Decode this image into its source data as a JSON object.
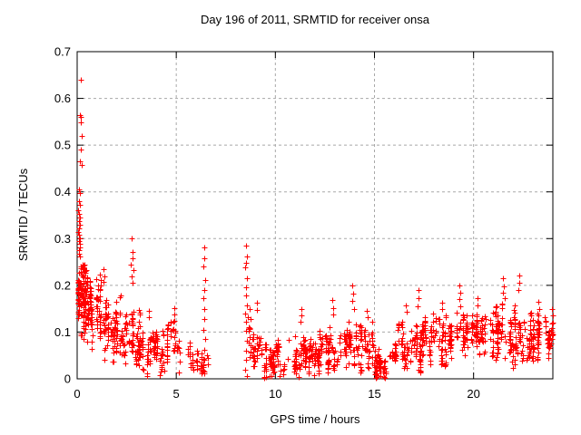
{
  "figure": {
    "title": "Day 196 of 2011, SRMTID for receiver onsa",
    "xlabel": "GPS time / hours",
    "ylabel": "SRMTID / TECUs"
  },
  "chart_data": {
    "type": "scatter",
    "title": "Day 196 of 2011, SRMTID for receiver onsa",
    "xlabel": "GPS time / hours",
    "ylabel": "SRMTID / TECUs",
    "xlim": [
      0,
      24
    ],
    "ylim": [
      0,
      0.7
    ],
    "xticks": {
      "values": [
        0,
        5,
        10,
        15,
        20
      ],
      "labels": [
        "0",
        "5",
        "10",
        "15",
        "20"
      ]
    },
    "yticks": {
      "values": [
        0,
        0.1,
        0.2,
        0.3,
        0.4,
        0.5,
        0.6,
        0.7
      ],
      "labels": [
        "0",
        "0.1",
        "0.2",
        "0.3",
        "0.4",
        "0.5",
        "0.6",
        "0.7"
      ]
    },
    "grid": {
      "style": "dashed",
      "color": "#a8a8a8"
    },
    "marker": {
      "shape": "plus",
      "color": "#ff0000",
      "size": 7
    },
    "border_color": "#000000",
    "background": "#ffffff",
    "legend": "none",
    "notes": "Dense 30s scatter: spike to 0.64 TECU at ~0.2h, decay to ~0.05 by 5h, data gap 6.7-8.4h, spikes to ~0.28 at 6.4h and 8.5h, low band 0-0.1 from 9-16h with dip near 0 at 15-16h, rise to 0.05-0.22 from 16-24h",
    "outlier_points": [
      [
        0.2,
        0.64
      ],
      [
        0.15,
        0.565
      ],
      [
        0.2,
        0.56
      ],
      [
        0.18,
        0.548
      ],
      [
        0.25,
        0.52
      ],
      [
        0.2,
        0.49
      ],
      [
        0.15,
        0.465
      ],
      [
        0.21,
        0.458
      ],
      [
        0.1,
        0.405
      ],
      [
        0.15,
        0.398
      ],
      [
        0.08,
        0.38
      ],
      [
        0.12,
        0.372
      ],
      [
        0.06,
        0.36
      ],
      [
        0.1,
        0.352
      ],
      [
        0.15,
        0.345
      ],
      [
        0.08,
        0.337
      ],
      [
        0.12,
        0.33
      ],
      [
        0.1,
        0.322
      ],
      [
        0.06,
        0.315
      ],
      [
        0.1,
        0.308
      ],
      [
        0.14,
        0.3
      ],
      [
        0.08,
        0.295
      ],
      [
        0.12,
        0.288
      ],
      [
        0.16,
        0.281
      ],
      [
        0.1,
        0.275
      ],
      [
        0.07,
        0.268
      ],
      [
        0.13,
        0.262
      ],
      [
        1.35,
        0.235
      ],
      [
        1.37,
        0.22
      ],
      [
        1.33,
        0.208
      ],
      [
        2.75,
        0.3
      ],
      [
        2.78,
        0.272
      ],
      [
        2.8,
        0.258
      ],
      [
        2.72,
        0.245
      ],
      [
        2.85,
        0.232
      ],
      [
        2.76,
        0.22
      ],
      [
        2.8,
        0.205
      ],
      [
        3.6,
        0.145
      ],
      [
        3.62,
        0.132
      ],
      [
        4.9,
        0.152
      ],
      [
        4.92,
        0.138
      ],
      [
        4.88,
        0.125
      ],
      [
        6.4,
        0.282
      ],
      [
        6.42,
        0.258
      ],
      [
        6.38,
        0.24
      ],
      [
        6.45,
        0.212
      ],
      [
        6.4,
        0.19
      ],
      [
        6.35,
        0.172
      ],
      [
        6.42,
        0.15
      ],
      [
        6.4,
        0.128
      ],
      [
        6.38,
        0.105
      ],
      [
        6.45,
        0.085
      ],
      [
        6.4,
        0.062
      ],
      [
        6.42,
        0.04
      ],
      [
        6.38,
        0.018
      ],
      [
        8.52,
        0.285
      ],
      [
        8.55,
        0.262
      ],
      [
        8.5,
        0.248
      ],
      [
        8.48,
        0.238
      ],
      [
        8.55,
        0.215
      ],
      [
        8.52,
        0.195
      ],
      [
        8.5,
        0.178
      ],
      [
        8.55,
        0.158
      ],
      [
        8.48,
        0.14
      ],
      [
        8.52,
        0.122
      ],
      [
        8.5,
        0.102
      ],
      [
        8.55,
        0.082
      ],
      [
        8.52,
        0.06
      ],
      [
        8.5,
        0.04
      ],
      [
        8.48,
        0.02
      ],
      [
        8.55,
        0.005
      ],
      [
        8.62,
        0.132
      ],
      [
        8.65,
        0.11
      ],
      [
        8.68,
        0.09
      ],
      [
        8.72,
        0.15
      ],
      [
        8.75,
        0.128
      ],
      [
        9.05,
        0.162
      ],
      [
        9.07,
        0.148
      ],
      [
        11.3,
        0.15
      ],
      [
        11.32,
        0.136
      ],
      [
        11.28,
        0.122
      ],
      [
        12.88,
        0.168
      ],
      [
        12.9,
        0.152
      ],
      [
        12.92,
        0.138
      ],
      [
        13.9,
        0.2
      ],
      [
        13.92,
        0.182
      ],
      [
        13.88,
        0.166
      ],
      [
        13.95,
        0.15
      ],
      [
        14.6,
        0.145
      ],
      [
        14.64,
        0.131
      ],
      [
        16.58,
        0.158
      ],
      [
        16.62,
        0.144
      ],
      [
        17.2,
        0.19
      ],
      [
        17.22,
        0.173
      ],
      [
        17.18,
        0.156
      ],
      [
        18.4,
        0.163
      ],
      [
        18.42,
        0.149
      ],
      [
        19.3,
        0.2
      ],
      [
        19.32,
        0.185
      ],
      [
        19.28,
        0.17
      ],
      [
        19.35,
        0.156
      ],
      [
        20.2,
        0.172
      ],
      [
        20.22,
        0.158
      ],
      [
        21.5,
        0.215
      ],
      [
        21.52,
        0.198
      ],
      [
        21.48,
        0.185
      ],
      [
        21.55,
        0.172
      ],
      [
        21.45,
        0.16
      ],
      [
        22.3,
        0.222
      ],
      [
        22.32,
        0.205
      ],
      [
        22.28,
        0.19
      ],
      [
        23.28,
        0.165
      ],
      [
        23.32,
        0.15
      ],
      [
        23.95,
        0.15
      ],
      [
        23.98,
        0.136
      ],
      [
        24.0,
        0.12
      ],
      [
        23.97,
        0.108
      ],
      [
        23.99,
        0.095
      ]
    ],
    "cluster_bands": [
      [
        0.05,
        0.45,
        14,
        4,
        8,
        0.12,
        0.24,
        0.04
      ],
      [
        0.3,
        1.2,
        22,
        3,
        7,
        0.09,
        0.2,
        0.035
      ],
      [
        1.2,
        2.2,
        20,
        3,
        6,
        0.06,
        0.16,
        0.03
      ],
      [
        2.2,
        3.2,
        18,
        3,
        6,
        0.05,
        0.13,
        0.03
      ],
      [
        3.2,
        4.3,
        16,
        3,
        6,
        0.02,
        0.09,
        0.025
      ],
      [
        4.3,
        5.3,
        14,
        2,
        5,
        0.03,
        0.1,
        0.03
      ],
      [
        5.3,
        6.3,
        10,
        2,
        4,
        0.01,
        0.07,
        0.02
      ],
      [
        6.3,
        6.65,
        5,
        2,
        4,
        0.01,
        0.06,
        0.02
      ],
      [
        8.55,
        9.3,
        10,
        2,
        5,
        0.02,
        0.09,
        0.025
      ],
      [
        9.3,
        10.5,
        18,
        3,
        6,
        0.015,
        0.07,
        0.022
      ],
      [
        10.5,
        12.0,
        22,
        3,
        6,
        0.02,
        0.08,
        0.025
      ],
      [
        12.0,
        13.5,
        22,
        3,
        6,
        0.03,
        0.09,
        0.027
      ],
      [
        13.5,
        15.0,
        22,
        3,
        6,
        0.03,
        0.1,
        0.028
      ],
      [
        15.0,
        16.2,
        18,
        3,
        6,
        0.005,
        0.06,
        0.022
      ],
      [
        16.2,
        17.5,
        20,
        3,
        6,
        0.03,
        0.11,
        0.028
      ],
      [
        17.5,
        19.0,
        22,
        3,
        6,
        0.04,
        0.12,
        0.03
      ],
      [
        19.0,
        20.5,
        22,
        3,
        6,
        0.05,
        0.13,
        0.03
      ],
      [
        20.5,
        22.0,
        22,
        3,
        6,
        0.05,
        0.14,
        0.032
      ],
      [
        22.0,
        23.2,
        20,
        3,
        6,
        0.05,
        0.13,
        0.03
      ],
      [
        23.2,
        24.0,
        14,
        3,
        6,
        0.06,
        0.13,
        0.028
      ]
    ],
    "seed": 20110196
  }
}
